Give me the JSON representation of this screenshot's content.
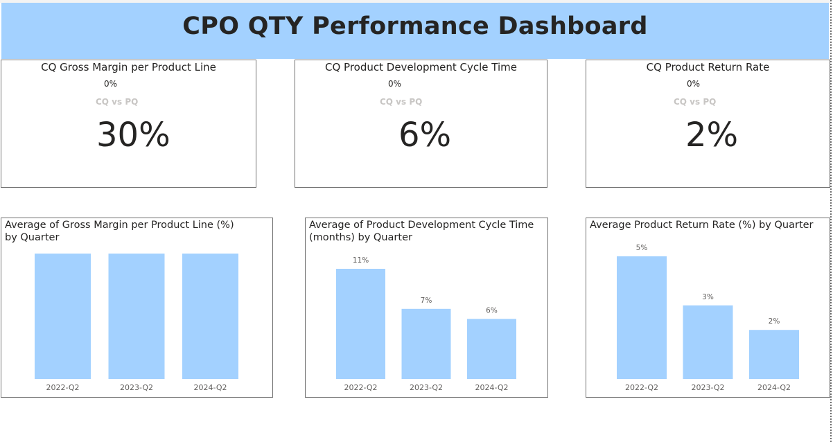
{
  "header": {
    "title": "CPO QTY Performance Dashboard"
  },
  "colors": {
    "banner": "#a3d1ff",
    "bar": "#a3d1ff",
    "secondary_text": "#c8c6c4"
  },
  "cards": [
    {
      "title": "CQ Gross Margin per Product Line",
      "change": "0%",
      "comparison": "CQ vs PQ",
      "value": "30%"
    },
    {
      "title": "CQ Product Development Cycle Time",
      "change": "0%",
      "comparison": "CQ vs PQ",
      "value": "6%"
    },
    {
      "title": "CQ Product Return Rate",
      "change": "0%",
      "comparison": "CQ vs PQ",
      "value": "2%"
    }
  ],
  "chart_data": [
    {
      "type": "bar",
      "title": "Average of Gross Margin per Product Line (%) by Quarter",
      "categories": [
        "2022-Q2",
        "2023-Q2",
        "2024-Q2"
      ],
      "values": [
        30,
        30,
        30
      ],
      "value_labels": [
        "",
        "",
        ""
      ],
      "ylim": [
        0,
        30
      ],
      "grid": false
    },
    {
      "type": "bar",
      "title": "Average of Product Development Cycle Time (months) by Quarter",
      "categories": [
        "2022-Q2",
        "2023-Q2",
        "2024-Q2"
      ],
      "values": [
        11,
        7,
        6
      ],
      "value_labels": [
        "11%",
        "7%",
        "6%"
      ],
      "ylim": [
        0,
        11
      ],
      "grid": false
    },
    {
      "type": "bar",
      "title": "Average Product Return Rate (%) by Quarter",
      "categories": [
        "2022-Q2",
        "2023-Q2",
        "2024-Q2"
      ],
      "values": [
        5,
        3,
        2
      ],
      "value_labels": [
        "5%",
        "3%",
        "2%"
      ],
      "ylim": [
        0,
        5
      ],
      "grid": false
    }
  ]
}
